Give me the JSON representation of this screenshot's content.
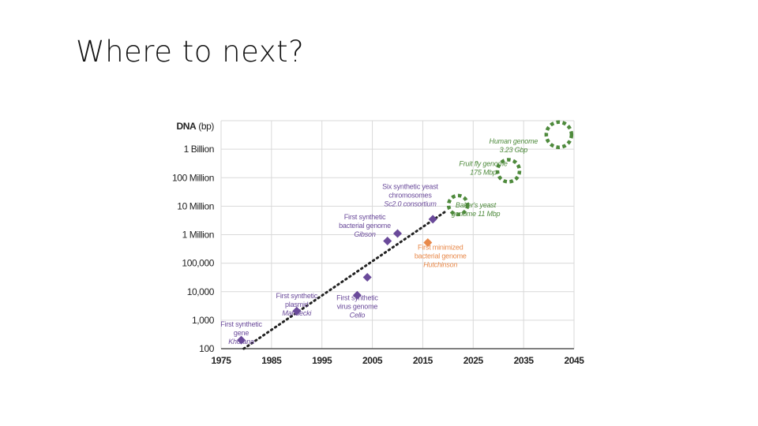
{
  "slide": {
    "title": "Where to next?"
  },
  "colors": {
    "synthetic": "#6a4a9a",
    "minimized": "#e8894a",
    "projected": "#4e8a3c",
    "grid": "#d9d9d9",
    "trend": "#222222"
  },
  "chart_data": {
    "type": "scatter",
    "ylabel_bold": "DNA",
    "ylabel_rest": " (bp)",
    "y_scale": "log",
    "ylim": [
      100,
      10000000000
    ],
    "xlim": [
      1975,
      2045
    ],
    "x_ticks": [
      "1975",
      "1985",
      "1995",
      "2005",
      "2015",
      "2025",
      "2035",
      "2045"
    ],
    "y_ticks": [
      {
        "value": 100,
        "label": "100"
      },
      {
        "value": 1000,
        "label": "1,000"
      },
      {
        "value": 10000,
        "label": "10,000"
      },
      {
        "value": 100000,
        "label": "100,000"
      },
      {
        "value": 1000000,
        "label": "1 Million"
      },
      {
        "value": 10000000,
        "label": "10 Million"
      },
      {
        "value": 100000000,
        "label": "100 Million"
      },
      {
        "value": 1000000000,
        "label": "1 Billion"
      }
    ],
    "grid": true,
    "series": [
      {
        "marker": "diamond",
        "color_key": "synthetic",
        "points": [
          {
            "x": 1979,
            "y": 200
          },
          {
            "x": 1990,
            "y": 2100
          },
          {
            "x": 2002,
            "y": 7500
          },
          {
            "x": 2004,
            "y": 32000
          },
          {
            "x": 2008,
            "y": 600000
          },
          {
            "x": 2010,
            "y": 1100000
          },
          {
            "x": 2017,
            "y": 3500000
          }
        ]
      },
      {
        "marker": "diamond",
        "color_key": "minimized",
        "points": [
          {
            "x": 2016,
            "y": 530000
          }
        ]
      },
      {
        "marker": "dashed-circle",
        "color_key": "projected",
        "points": [
          {
            "x": 2022,
            "y": 11000000,
            "r": 12
          },
          {
            "x": 2032,
            "y": 175000000,
            "r": 14
          },
          {
            "x": 2042,
            "y": 3230000000,
            "r": 16
          }
        ]
      }
    ],
    "trendline": {
      "from": {
        "x": 1979.5,
        "y": 100
      },
      "to": {
        "x": 2019.5,
        "y": 6500000
      }
    },
    "annotations": [
      {
        "x": 1979,
        "y": 600,
        "anchor": "middle",
        "color_key": "synthetic",
        "lines": [
          "First synthetic",
          "gene",
          "Khorana"
        ]
      },
      {
        "x": 1990,
        "y": 6000,
        "anchor": "middle",
        "color_key": "synthetic",
        "lines": [
          "First synthetic",
          "plasmid",
          "Mandecki"
        ]
      },
      {
        "x": 2002,
        "y": 5000,
        "anchor": "middle",
        "color_key": "synthetic",
        "lines": [
          "First synthetic",
          "virus genome",
          "Cello"
        ]
      },
      {
        "x": 2003.5,
        "y": 3500000,
        "anchor": "middle",
        "color_key": "synthetic",
        "lines": [
          "First synthetic",
          "bacterial genome",
          "Gibson"
        ]
      },
      {
        "x": 2012.5,
        "y": 40000000,
        "anchor": "middle",
        "color_key": "synthetic",
        "lines": [
          "Six synthetic yeast",
          "chromosomes",
          "Sc2.0 consortium"
        ]
      },
      {
        "x": 2018.5,
        "y": 300000,
        "anchor": "middle",
        "color_key": "minimized",
        "lines": [
          "First minimized",
          "bacterial genome",
          "Hutchinson"
        ]
      },
      {
        "x": 2025.5,
        "y": 9000000,
        "anchor": "middle",
        "color_key": "projected",
        "lines": [
          "Baker's yeast",
          "genome 11 Mbp"
        ]
      },
      {
        "x": 2033,
        "y": 1600000000,
        "anchor": "middle",
        "color_key": "projected",
        "lines": [
          "Human genome",
          "3.23 Gbp"
        ]
      },
      {
        "x": 2027,
        "y": 260000000,
        "anchor": "middle",
        "color_key": "projected",
        "lines": [
          "Fruit fly genome",
          "175 Mbp"
        ]
      }
    ]
  }
}
